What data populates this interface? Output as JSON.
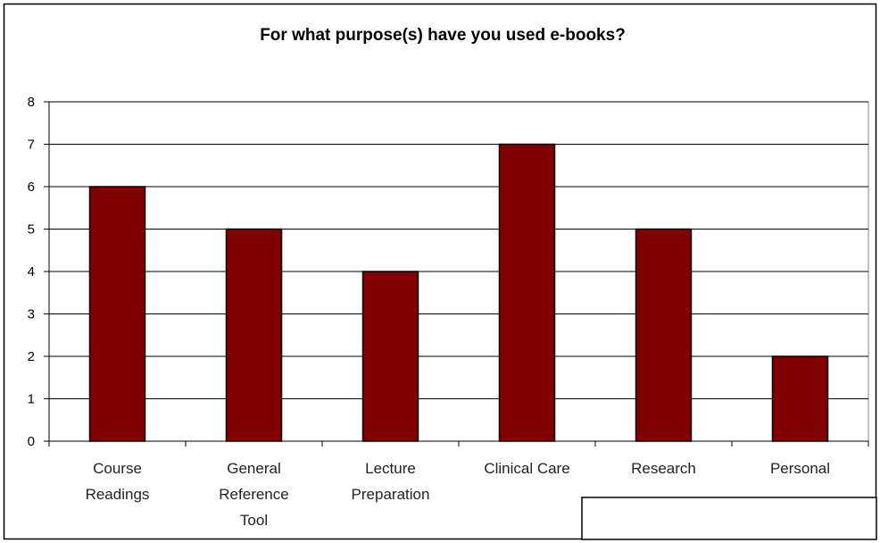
{
  "chart_data": {
    "type": "bar",
    "title": "For what purpose(s) have you used e-books?",
    "categories": [
      [
        "Course",
        "Readings"
      ],
      [
        "General",
        "Reference",
        "Tool"
      ],
      [
        "Lecture",
        "Preparation"
      ],
      [
        "Clinical Care"
      ],
      [
        "Research"
      ],
      [
        "Personal"
      ]
    ],
    "values": [
      6,
      5,
      4,
      7,
      5,
      2
    ],
    "ylim": [
      0,
      8
    ],
    "yticks": [
      0,
      1,
      2,
      3,
      4,
      5,
      6,
      7,
      8
    ],
    "xlabel": "",
    "ylabel": "",
    "grid": true,
    "legend": "none",
    "bar_color": "#800000",
    "grid_color": "#000000",
    "plot_background": "#ffffff"
  }
}
